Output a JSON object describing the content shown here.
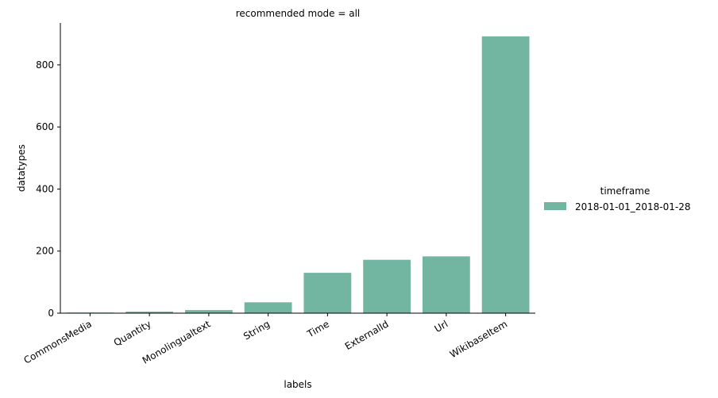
{
  "chart_data": {
    "type": "bar",
    "title": "recommended mode = all",
    "xlabel": "labels",
    "ylabel": "datatypes",
    "categories": [
      "CommonsMedia",
      "Quantity",
      "Monolingualtext",
      "String",
      "Time",
      "ExternalId",
      "Url",
      "WikibaseItem"
    ],
    "series": [
      {
        "name": "2018-01-01_2018-01-28",
        "values": [
          2,
          5,
          10,
          35,
          130,
          172,
          183,
          892
        ]
      }
    ],
    "ylim": [
      0,
      935
    ],
    "yticks": [
      0,
      200,
      400,
      600,
      800
    ],
    "grid": false,
    "legend": {
      "title": "timeframe",
      "placement": "right"
    },
    "colors": {
      "bar": "#72b6a1",
      "axis": "#000000"
    }
  }
}
